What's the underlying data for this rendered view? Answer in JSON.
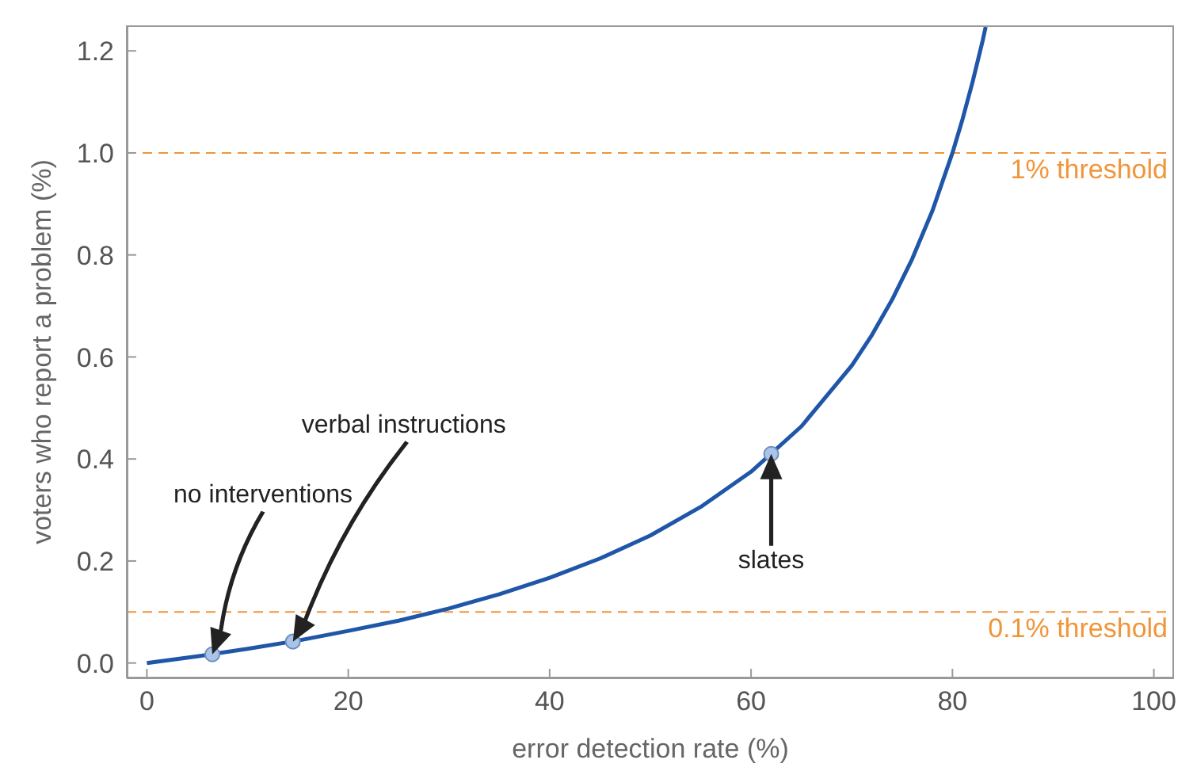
{
  "chart_data": {
    "type": "line",
    "xlabel": "error detection rate (%)",
    "ylabel": "voters who report a problem (%)",
    "xlim": [
      -2,
      102
    ],
    "ylim": [
      -0.03,
      1.25
    ],
    "xticks": [
      0,
      20,
      40,
      60,
      80,
      100
    ],
    "yticks": [
      {
        "value": 0,
        "label": "0.0"
      },
      {
        "value": 0.2,
        "label": "0.2"
      },
      {
        "value": 0.4,
        "label": "0.4"
      },
      {
        "value": 0.6,
        "label": "0.6"
      },
      {
        "value": 0.8,
        "label": "0.8"
      },
      {
        "value": 1,
        "label": "1.0"
      },
      {
        "value": 1.2,
        "label": "1.2"
      }
    ],
    "grid": false,
    "legend": false,
    "marker": "none",
    "line_style": "solid",
    "series": [
      {
        "color": "#1f56a8",
        "x": [
          0,
          5,
          10,
          15,
          20,
          25,
          30,
          35,
          40,
          45,
          50,
          55,
          60,
          65,
          70,
          72,
          74,
          76,
          78,
          80,
          81,
          82,
          83,
          83.3
        ],
        "values": [
          0,
          0.013,
          0.028,
          0.044,
          0.063,
          0.083,
          0.107,
          0.135,
          0.167,
          0.205,
          0.25,
          0.306,
          0.375,
          0.464,
          0.583,
          0.643,
          0.712,
          0.792,
          0.886,
          1.0,
          1.066,
          1.139,
          1.22,
          1.247
        ]
      },
      {
        "type": "scatter",
        "color": "#a9c4e8",
        "marker": "circle",
        "x": [
          6.5,
          14.5,
          62
        ],
        "values": [
          0.017,
          0.042,
          0.41
        ]
      }
    ],
    "ref_lines": [
      {
        "axis": "y",
        "value": 1,
        "label": "1% threshold",
        "color": "#f0953a",
        "line_style": "dashed"
      },
      {
        "axis": "y",
        "value": 0.1,
        "label": "0.1% threshold",
        "color": "#f0953a",
        "line_style": "dashed"
      }
    ],
    "annotations": [
      "no interventions",
      "verbal instructions",
      "slates"
    ]
  }
}
